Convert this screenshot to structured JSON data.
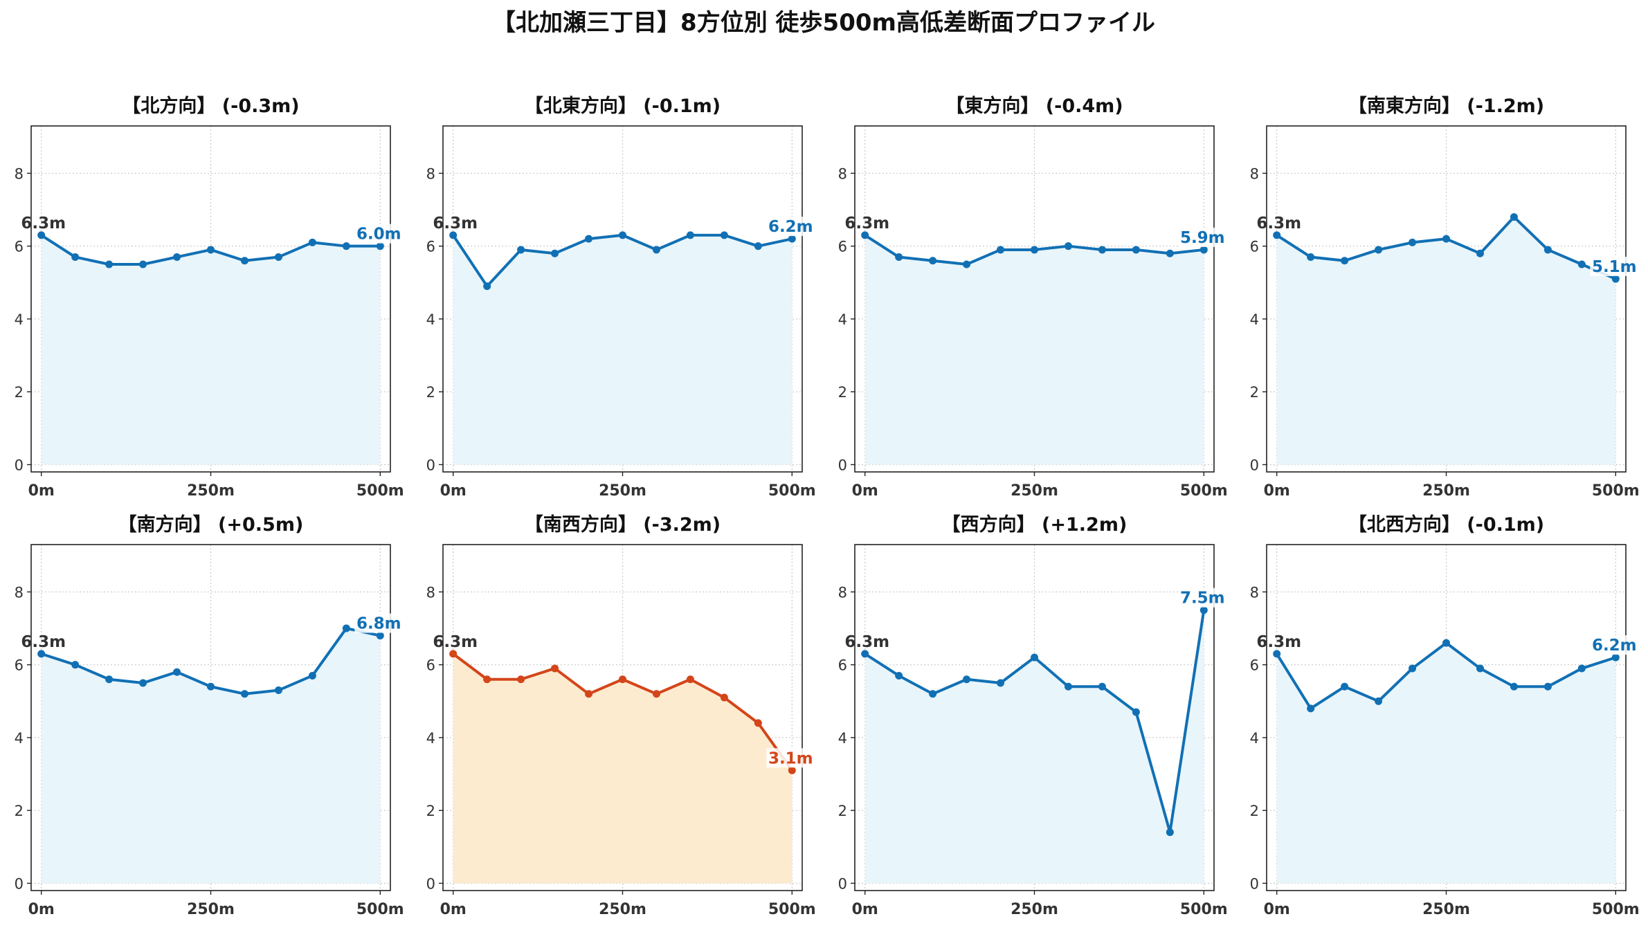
{
  "figure": {
    "title": "【北加瀬三丁目】8方位別 徒歩500m高低差断面プロファイル"
  },
  "colors": {
    "normal_line": "#1170b4",
    "normal_fill": "#e8f5fb",
    "highlight_line": "#d4451a",
    "highlight_fill": "#fdebcf",
    "start_label": "#333333",
    "grid": "#c8c8c8"
  },
  "chart_data": [
    {
      "type": "line",
      "title": "【北方向】 (-0.3m)",
      "x": [
        0,
        50,
        100,
        150,
        200,
        250,
        300,
        350,
        400,
        450,
        500
      ],
      "values": [
        6.3,
        5.7,
        5.5,
        5.5,
        5.7,
        5.9,
        5.6,
        5.7,
        6.1,
        6.0,
        6.0
      ],
      "xticks": [
        0,
        250,
        500
      ],
      "xticklabels": [
        "0m",
        "250m",
        "500m"
      ],
      "yticks": [
        0,
        2,
        4,
        6,
        8
      ],
      "yticklabels": [
        "0",
        "2",
        "4",
        "6",
        "8"
      ],
      "xlim": [
        -15,
        515
      ],
      "ylim": [
        -0.2,
        9.3
      ],
      "start_label": "6.3m",
      "end_label": "6.0m",
      "highlight": false,
      "grid": true
    },
    {
      "type": "line",
      "title": "【北東方向】 (-0.1m)",
      "x": [
        0,
        50,
        100,
        150,
        200,
        250,
        300,
        350,
        400,
        450,
        500
      ],
      "values": [
        6.3,
        4.9,
        5.9,
        5.8,
        6.2,
        6.3,
        5.9,
        6.3,
        6.3,
        6.0,
        6.2
      ],
      "xticks": [
        0,
        250,
        500
      ],
      "xticklabels": [
        "0m",
        "250m",
        "500m"
      ],
      "yticks": [
        0,
        2,
        4,
        6,
        8
      ],
      "yticklabels": [
        "0",
        "2",
        "4",
        "6",
        "8"
      ],
      "xlim": [
        -15,
        515
      ],
      "ylim": [
        -0.2,
        9.3
      ],
      "start_label": "6.3m",
      "end_label": "6.2m",
      "highlight": false,
      "grid": true
    },
    {
      "type": "line",
      "title": "【東方向】 (-0.4m)",
      "x": [
        0,
        50,
        100,
        150,
        200,
        250,
        300,
        350,
        400,
        450,
        500
      ],
      "values": [
        6.3,
        5.7,
        5.6,
        5.5,
        5.9,
        5.9,
        6.0,
        5.9,
        5.9,
        5.8,
        5.9
      ],
      "xticks": [
        0,
        250,
        500
      ],
      "xticklabels": [
        "0m",
        "250m",
        "500m"
      ],
      "yticks": [
        0,
        2,
        4,
        6,
        8
      ],
      "yticklabels": [
        "0",
        "2",
        "4",
        "6",
        "8"
      ],
      "xlim": [
        -15,
        515
      ],
      "ylim": [
        -0.2,
        9.3
      ],
      "start_label": "6.3m",
      "end_label": "5.9m",
      "highlight": false,
      "grid": true
    },
    {
      "type": "line",
      "title": "【南東方向】 (-1.2m)",
      "x": [
        0,
        50,
        100,
        150,
        200,
        250,
        300,
        350,
        400,
        450,
        500
      ],
      "values": [
        6.3,
        5.7,
        5.6,
        5.9,
        6.1,
        6.2,
        5.8,
        6.8,
        5.9,
        5.5,
        5.1
      ],
      "xticks": [
        0,
        250,
        500
      ],
      "xticklabels": [
        "0m",
        "250m",
        "500m"
      ],
      "yticks": [
        0,
        2,
        4,
        6,
        8
      ],
      "yticklabels": [
        "0",
        "2",
        "4",
        "6",
        "8"
      ],
      "xlim": [
        -15,
        515
      ],
      "ylim": [
        -0.2,
        9.3
      ],
      "start_label": "6.3m",
      "end_label": "5.1m",
      "highlight": false,
      "grid": true
    },
    {
      "type": "line",
      "title": "【南方向】 (+0.5m)",
      "x": [
        0,
        50,
        100,
        150,
        200,
        250,
        300,
        350,
        400,
        450,
        500
      ],
      "values": [
        6.3,
        6.0,
        5.6,
        5.5,
        5.8,
        5.4,
        5.2,
        5.3,
        5.7,
        7.0,
        6.8
      ],
      "xticks": [
        0,
        250,
        500
      ],
      "xticklabels": [
        "0m",
        "250m",
        "500m"
      ],
      "yticks": [
        0,
        2,
        4,
        6,
        8
      ],
      "yticklabels": [
        "0",
        "2",
        "4",
        "6",
        "8"
      ],
      "xlim": [
        -15,
        515
      ],
      "ylim": [
        -0.2,
        9.3
      ],
      "start_label": "6.3m",
      "end_label": "6.8m",
      "highlight": false,
      "grid": true
    },
    {
      "type": "line",
      "title": "【南西方向】 (-3.2m)",
      "x": [
        0,
        50,
        100,
        150,
        200,
        250,
        300,
        350,
        400,
        450,
        500
      ],
      "values": [
        6.3,
        5.6,
        5.6,
        5.9,
        5.2,
        5.6,
        5.2,
        5.6,
        5.1,
        4.4,
        3.1
      ],
      "xticks": [
        0,
        250,
        500
      ],
      "xticklabels": [
        "0m",
        "250m",
        "500m"
      ],
      "yticks": [
        0,
        2,
        4,
        6,
        8
      ],
      "yticklabels": [
        "0",
        "2",
        "4",
        "6",
        "8"
      ],
      "xlim": [
        -15,
        515
      ],
      "ylim": [
        -0.2,
        9.3
      ],
      "start_label": "6.3m",
      "end_label": "3.1m",
      "highlight": true,
      "grid": true
    },
    {
      "type": "line",
      "title": "【西方向】 (+1.2m)",
      "x": [
        0,
        50,
        100,
        150,
        200,
        250,
        300,
        350,
        400,
        450,
        500
      ],
      "values": [
        6.3,
        5.7,
        5.2,
        5.6,
        5.5,
        6.2,
        5.4,
        5.4,
        4.7,
        1.4,
        7.5
      ],
      "xticks": [
        0,
        250,
        500
      ],
      "xticklabels": [
        "0m",
        "250m",
        "500m"
      ],
      "yticks": [
        0,
        2,
        4,
        6,
        8
      ],
      "yticklabels": [
        "0",
        "2",
        "4",
        "6",
        "8"
      ],
      "xlim": [
        -15,
        515
      ],
      "ylim": [
        -0.2,
        9.3
      ],
      "start_label": "6.3m",
      "end_label": "7.5m",
      "highlight": false,
      "grid": true
    },
    {
      "type": "line",
      "title": "【北西方向】 (-0.1m)",
      "x": [
        0,
        50,
        100,
        150,
        200,
        250,
        300,
        350,
        400,
        450,
        500
      ],
      "values": [
        6.3,
        4.8,
        5.4,
        5.0,
        5.9,
        6.6,
        5.9,
        5.4,
        5.4,
        5.9,
        6.2
      ],
      "xticks": [
        0,
        250,
        500
      ],
      "xticklabels": [
        "0m",
        "250m",
        "500m"
      ],
      "yticks": [
        0,
        2,
        4,
        6,
        8
      ],
      "yticklabels": [
        "0",
        "2",
        "4",
        "6",
        "8"
      ],
      "xlim": [
        -15,
        515
      ],
      "ylim": [
        -0.2,
        9.3
      ],
      "start_label": "6.3m",
      "end_label": "6.2m",
      "highlight": false,
      "grid": true
    }
  ]
}
